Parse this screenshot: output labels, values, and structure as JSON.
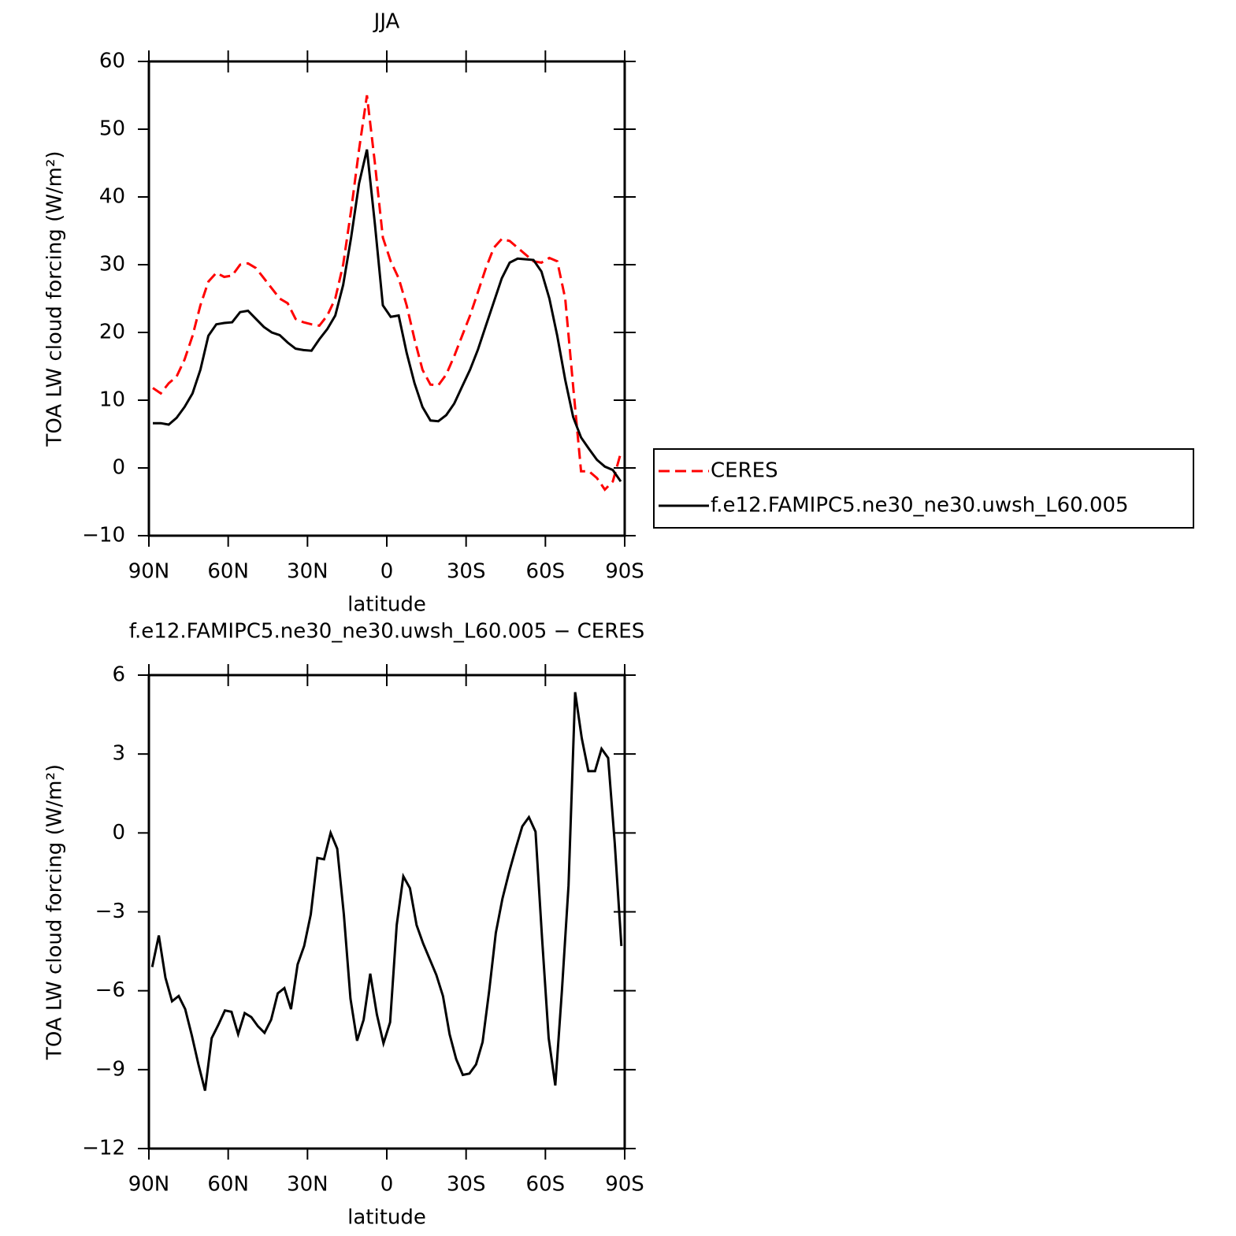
{
  "chart_data": [
    {
      "type": "line",
      "title": "JJA",
      "xlabel": "latitude",
      "ylabel": "TOA LW cloud forcing (W/m²)",
      "x": [
        88.5,
        85.5,
        82.5,
        79.5,
        76.5,
        73.5,
        70.5,
        67.5,
        64.5,
        61.5,
        58.5,
        55.5,
        52.5,
        49.5,
        46.5,
        43.5,
        40.5,
        37.5,
        34.5,
        31.5,
        28.5,
        25.5,
        22.5,
        19.5,
        16.5,
        13.5,
        10.5,
        7.5,
        4.5,
        1.5,
        -1.5,
        -4.5,
        -7.5,
        -10.5,
        -13.5,
        -16.5,
        -19.5,
        -22.5,
        -25.5,
        -28.5,
        -31.5,
        -34.5,
        -37.5,
        -40.5,
        -43.5,
        -46.5,
        -49.5,
        -52.5,
        -55.5,
        -58.5,
        -61.5,
        -64.5,
        -67.5,
        -70.5,
        -73.5,
        -76.5,
        -79.5,
        -82.5,
        -85.5,
        -88.5
      ],
      "series": [
        {
          "name": "CERES",
          "color": "#ff0000",
          "line_style": "dashed",
          "values": [
            11.8,
            11,
            12.5,
            13.5,
            16,
            19.5,
            24,
            27.5,
            28.8,
            28.2,
            28.4,
            30,
            30.2,
            29.5,
            28,
            26.5,
            25,
            24.3,
            22,
            21.5,
            21.2,
            21,
            22.5,
            25,
            30,
            38,
            47,
            55,
            45,
            34,
            30.5,
            28,
            24,
            19,
            14.5,
            12.3,
            12.2,
            13.8,
            16.5,
            19.5,
            22.5,
            26,
            29.5,
            32.5,
            33.8,
            33.5,
            32.5,
            31.5,
            30.5,
            30.3,
            31,
            30.5,
            25,
            12,
            -0.5,
            -0.5,
            -1.5,
            -3.2,
            -2,
            2.2
          ]
        },
        {
          "name": "f.e12.FAMIPC5.ne30_ne30.uwsh_L60.005",
          "color": "#000000",
          "line_style": "solid",
          "values": [
            6.6,
            6.6,
            6.4,
            7.4,
            9,
            11,
            14.5,
            19.5,
            21.2,
            21.4,
            21.5,
            23,
            23.2,
            22,
            20.8,
            20,
            19.6,
            18.5,
            17.6,
            17.4,
            17.3,
            19,
            20.5,
            22.5,
            27,
            34,
            42,
            47,
            36,
            24,
            22.3,
            22.5,
            17,
            12.5,
            9,
            7,
            6.9,
            7.8,
            9.5,
            12,
            14.5,
            17.5,
            21,
            24.5,
            28,
            30.3,
            30.9,
            30.8,
            30.7,
            29,
            25,
            19.5,
            13,
            7.5,
            4.5,
            2.8,
            1.2,
            0.2,
            -0.3,
            -2
          ]
        }
      ],
      "xlim": [
        90,
        -90
      ],
      "xticks": [
        {
          "value": 90,
          "label": "90N"
        },
        {
          "value": 60,
          "label": "60N"
        },
        {
          "value": 30,
          "label": "30N"
        },
        0,
        {
          "value": -30,
          "label": "30S"
        },
        {
          "value": -60,
          "label": "60S"
        },
        {
          "value": -90,
          "label": "90S"
        }
      ],
      "ylim": [
        -10,
        60
      ],
      "yticks": [
        {
          "value": -10,
          "label": "−10"
        },
        0,
        10,
        20,
        30,
        40,
        50,
        60
      ],
      "legend": "right"
    },
    {
      "type": "line",
      "title": "f.e12.FAMIPC5.ne30_ne30.uwsh_L60.005 − CERES",
      "xlabel": "latitude",
      "ylabel": "TOA LW cloud forcing (W/m²)",
      "x": [
        88.75,
        86.25,
        83.75,
        81.25,
        78.75,
        76.25,
        73.75,
        71.25,
        68.75,
        66.25,
        63.75,
        61.25,
        58.75,
        56.25,
        53.75,
        51.25,
        48.75,
        46.25,
        43.75,
        41.25,
        38.75,
        36.25,
        33.75,
        31.25,
        28.75,
        26.25,
        23.75,
        21.25,
        18.75,
        16.25,
        13.75,
        11.25,
        8.75,
        6.25,
        3.75,
        1.25,
        -1.25,
        -3.75,
        -6.25,
        -8.75,
        -11.25,
        -13.75,
        -16.25,
        -18.75,
        -21.25,
        -23.75,
        -26.25,
        -28.75,
        -31.25,
        -33.75,
        -36.25,
        -38.75,
        -41.25,
        -43.75,
        -46.25,
        -48.75,
        -51.25,
        -53.75,
        -56.25,
        -58.75,
        -61.25,
        -63.75,
        -66.25,
        -68.75,
        -71.25,
        -73.75,
        -76.25,
        -78.75,
        -81.25,
        -83.75,
        -86.25,
        -88.75
      ],
      "color": "#000000",
      "values": [
        -5.1,
        -3.9,
        -5.5,
        -6.4,
        -6.2,
        -6.7,
        -7.7,
        -8.8,
        -9.8,
        -7.8,
        -7.3,
        -6.75,
        -6.8,
        -7.65,
        -6.85,
        -7,
        -7.35,
        -7.6,
        -7.1,
        -6.1,
        -5.9,
        -6.7,
        -5,
        -4.3,
        -3.1,
        -0.95,
        -1,
        0,
        -0.6,
        -3.1,
        -6.3,
        -7.9,
        -7.1,
        -5.35,
        -6.9,
        -8,
        -7.2,
        -3.5,
        -1.65,
        -2.1,
        -3.5,
        -4.2,
        -4.8,
        -5.4,
        -6.2,
        -7.65,
        -8.6,
        -9.2,
        -9.15,
        -8.8,
        -7.95,
        -6,
        -3.8,
        -2.5,
        -1.5,
        -0.6,
        0.25,
        0.6,
        0.05,
        -4,
        -7.8,
        -9.6,
        -6,
        -2,
        5.35,
        3.6,
        2.35,
        2.35,
        3.2,
        2.85,
        -0.4,
        -4.3
      ],
      "xlim": [
        90,
        -90
      ],
      "xticks": [
        {
          "value": 90,
          "label": "90N"
        },
        {
          "value": 60,
          "label": "60N"
        },
        {
          "value": 30,
          "label": "30N"
        },
        0,
        {
          "value": -30,
          "label": "30S"
        },
        {
          "value": -60,
          "label": "60S"
        },
        {
          "value": -90,
          "label": "90S"
        }
      ],
      "ylim": [
        -12,
        6
      ],
      "yticks": [
        {
          "value": -12,
          "label": "−12"
        },
        {
          "value": -9,
          "label": "−9"
        },
        {
          "value": -6,
          "label": "−6"
        },
        {
          "value": -3,
          "label": "−3"
        },
        0,
        3,
        6
      ]
    }
  ]
}
